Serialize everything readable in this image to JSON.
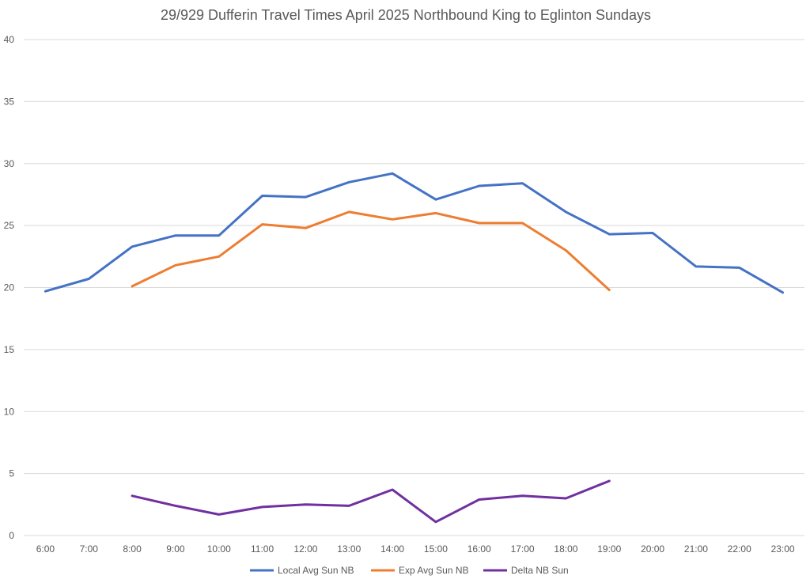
{
  "chart_data": {
    "type": "line",
    "title": "29/929 Dufferin Travel Times April 2025 Northbound King to Eglinton Sundays",
    "xlabel": "",
    "ylabel": "",
    "categories": [
      "6:00",
      "7:00",
      "8:00",
      "9:00",
      "10:00",
      "11:00",
      "12:00",
      "13:00",
      "14:00",
      "15:00",
      "16:00",
      "17:00",
      "18:00",
      "19:00",
      "20:00",
      "21:00",
      "22:00",
      "23:00"
    ],
    "ylim": [
      0,
      40
    ],
    "yticks": [
      "0",
      "5",
      "10",
      "15",
      "20",
      "25",
      "30",
      "35",
      "40"
    ],
    "grid": true,
    "legend_position": "bottom",
    "series": [
      {
        "name": "Local Avg Sun NB",
        "color": "#4472c4",
        "values": [
          19.7,
          20.7,
          23.3,
          24.2,
          24.2,
          27.4,
          27.3,
          28.5,
          29.2,
          27.1,
          28.2,
          28.4,
          26.1,
          24.3,
          24.4,
          21.7,
          21.6,
          19.6
        ]
      },
      {
        "name": "Exp Avg Sun NB",
        "color": "#ed7d31",
        "values": [
          null,
          null,
          20.1,
          21.8,
          22.5,
          25.1,
          24.8,
          26.1,
          25.5,
          26.0,
          25.2,
          25.2,
          23.0,
          19.8,
          null,
          null,
          null,
          null
        ]
      },
      {
        "name": "Delta NB Sun",
        "color": "#7030a0",
        "values": [
          null,
          null,
          3.2,
          2.4,
          1.7,
          2.3,
          2.5,
          2.4,
          3.7,
          1.1,
          2.9,
          3.2,
          3.0,
          4.4,
          null,
          null,
          null,
          null
        ]
      }
    ]
  }
}
